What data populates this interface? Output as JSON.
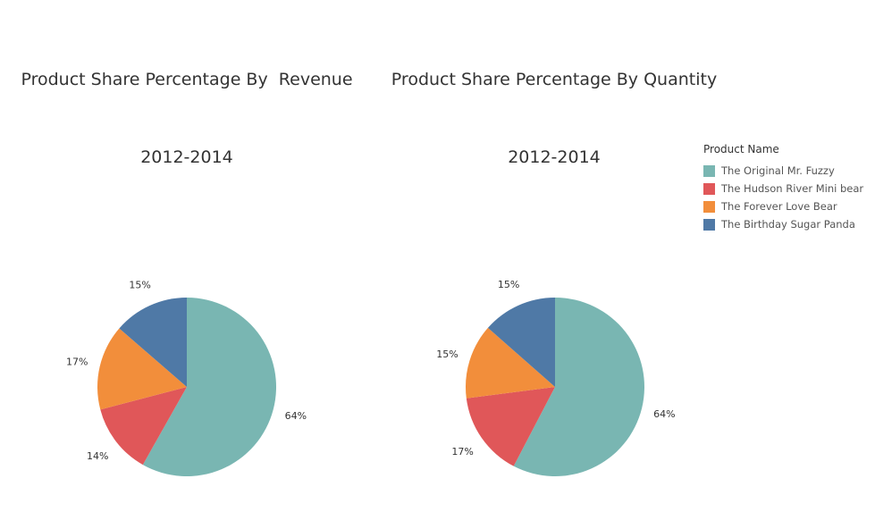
{
  "chart_data": [
    {
      "type": "pie",
      "title": "Product Share Percentage By  Revenue",
      "subtitle": "2012-2014",
      "categories": [
        "The Original Mr. Fuzzy",
        "The Hudson River Mini bear",
        "The Forever Love Bear",
        "The Birthday Sugar Panda"
      ],
      "values": [
        64,
        14,
        17,
        15
      ],
      "labels": [
        "64%",
        "14%",
        "17%",
        "15%"
      ]
    },
    {
      "type": "pie",
      "title": "Product Share Percentage By Quantity",
      "subtitle": "2012-2014",
      "categories": [
        "The Original Mr. Fuzzy",
        "The Hudson River Mini bear",
        "The Forever Love Bear",
        "The Birthday Sugar Panda"
      ],
      "values": [
        64,
        17,
        15,
        15
      ],
      "labels": [
        "64%",
        "17%",
        "15%",
        "15%"
      ]
    }
  ],
  "legend": {
    "title": "Product Name",
    "items": [
      {
        "label": "The Original Mr. Fuzzy",
        "color": "#79b6b2"
      },
      {
        "label": "The Hudson River Mini bear",
        "color": "#e05759"
      },
      {
        "label": "The Forever Love Bear",
        "color": "#f28e3b"
      },
      {
        "label": "The Birthday Sugar Panda",
        "color": "#4f79a6"
      }
    ]
  }
}
